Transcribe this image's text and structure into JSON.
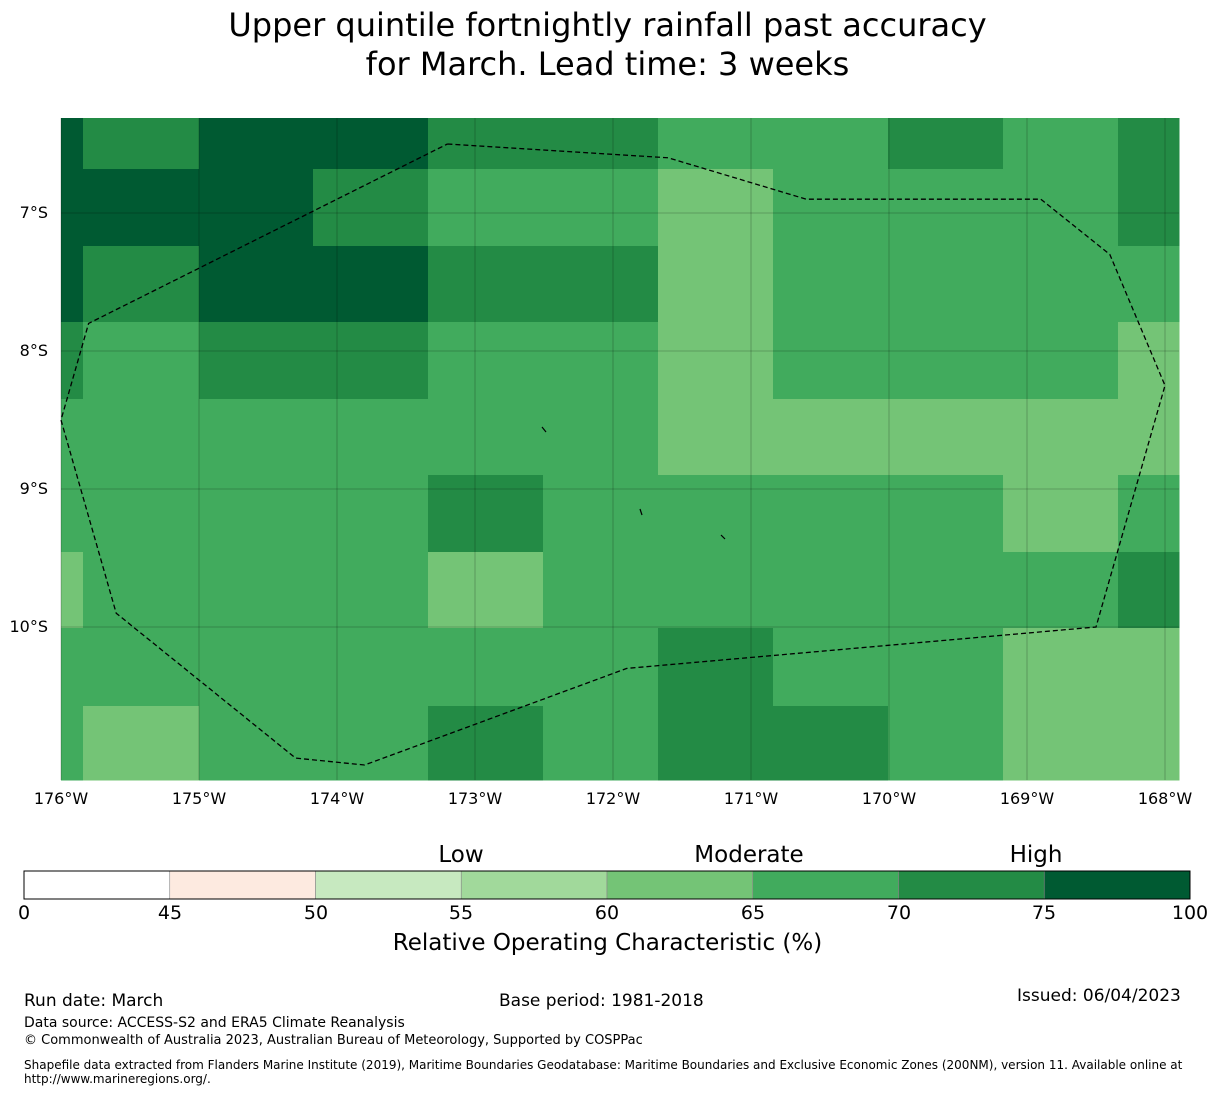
{
  "title": {
    "line1": "Upper quintile fortnightly rainfall past accuracy",
    "line2": "for March. Lead time: 3 weeks"
  },
  "map": {
    "lat_labels": [
      "7°S",
      "8°S",
      "9°S",
      "10°S"
    ],
    "lon_labels": [
      "176°W",
      "175°W",
      "174°W",
      "173°W",
      "172°W",
      "171°W",
      "170°W",
      "169°W",
      "168°W"
    ],
    "lon_range": [
      -176.0,
      -167.9
    ],
    "lat_range": [
      -11.1,
      -6.3
    ],
    "cell_grid_roc": [
      [
        75,
        70,
        75,
        75,
        70,
        70,
        65,
        65,
        70,
        65,
        70
      ],
      [
        75,
        75,
        75,
        70,
        65,
        65,
        60,
        65,
        65,
        65,
        70
      ],
      [
        75,
        70,
        75,
        75,
        70,
        70,
        60,
        65,
        65,
        65,
        65
      ],
      [
        70,
        65,
        70,
        70,
        65,
        65,
        60,
        65,
        65,
        65,
        60
      ],
      [
        65,
        65,
        65,
        65,
        65,
        65,
        60,
        60,
        60,
        60,
        60
      ],
      [
        65,
        65,
        65,
        65,
        70,
        65,
        65,
        65,
        65,
        60,
        65
      ],
      [
        60,
        65,
        65,
        65,
        60,
        65,
        65,
        65,
        65,
        65,
        70
      ],
      [
        65,
        65,
        65,
        65,
        65,
        65,
        70,
        65,
        65,
        60,
        60
      ],
      [
        65,
        60,
        65,
        65,
        70,
        65,
        70,
        70,
        65,
        60,
        60
      ]
    ],
    "eez_boundary_lonlat": [
      [
        -173.2,
        -6.5
      ],
      [
        -171.6,
        -6.6
      ],
      [
        -170.6,
        -6.9
      ],
      [
        -168.9,
        -6.9
      ],
      [
        -168.4,
        -7.3
      ],
      [
        -168.0,
        -8.25
      ],
      [
        -168.5,
        -10.0
      ],
      [
        -171.9,
        -10.3
      ],
      [
        -173.8,
        -11.0
      ],
      [
        -174.3,
        -10.95
      ],
      [
        -175.6,
        -9.9
      ],
      [
        -176.0,
        -8.5
      ],
      [
        -175.8,
        -7.8
      ],
      [
        -173.2,
        -6.5
      ]
    ]
  },
  "colorbar": {
    "bounds": [
      0,
      45,
      50,
      55,
      60,
      65,
      70,
      75,
      100
    ],
    "tick_labels": [
      "0",
      "45",
      "50",
      "55",
      "60",
      "65",
      "70",
      "75",
      "100"
    ],
    "colors": [
      "#ffffff",
      "#fdeae0",
      "#c7e9c0",
      "#a1d99b",
      "#74c476",
      "#41ab5d",
      "#238b45",
      "#005a32"
    ],
    "categories": [
      {
        "label": "Low",
        "center": 55
      },
      {
        "label": "Moderate",
        "center": 67.5
      },
      {
        "label": "High",
        "center": 85
      }
    ],
    "label": "Relative Operating Characteristic (%)"
  },
  "footer": {
    "run_date": "Run date: March",
    "base_period": "Base period: 1981-2018",
    "issued": "Issued: 06/04/2023",
    "data_source": "Data source: ACCESS-S2 and ERA5 Climate Reanalysis",
    "copyright": "© Commonwealth of Australia 2023, Australian Bureau of Meteorology, Supported by COSPPac",
    "shapefile_line1": "Shapefile data extracted from Flanders Marine Institute (2019), Maritime Boundaries Geodatabase: Maritime Boundaries and Exclusive Economic Zones (200NM), version 11. Available online at",
    "shapefile_line2": "http://www.marineregions.org/."
  }
}
